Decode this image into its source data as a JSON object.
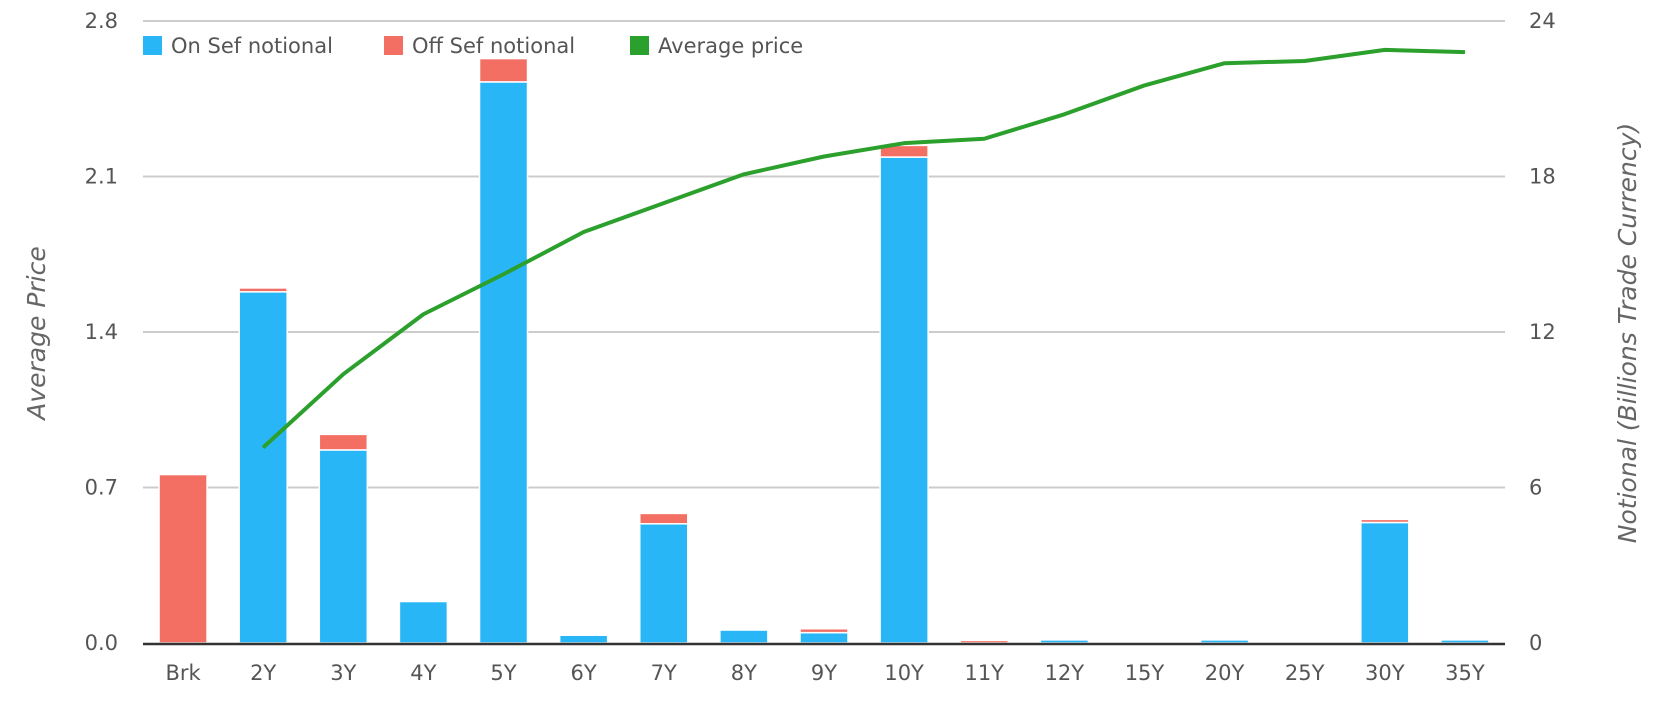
{
  "chart_data": {
    "type": "bar",
    "stacked": true,
    "categories": [
      "Brk",
      "2Y",
      "3Y",
      "4Y",
      "5Y",
      "6Y",
      "7Y",
      "8Y",
      "9Y",
      "10Y",
      "11Y",
      "12Y",
      "15Y",
      "20Y",
      "25Y",
      "30Y",
      "35Y"
    ],
    "series": [
      {
        "name": "On Sef notional",
        "type": "bar",
        "axis": "right",
        "color": "#29b6f6",
        "values": [
          0,
          13.55,
          7.45,
          1.6,
          21.65,
          0.3,
          4.6,
          0.5,
          0.4,
          18.75,
          0,
          0.12,
          0,
          0.12,
          0,
          4.65,
          0.12
        ]
      },
      {
        "name": "Off Sef notional",
        "type": "bar",
        "axis": "right",
        "color": "#f36f63",
        "values": [
          6.5,
          0.15,
          0.6,
          0,
          0.9,
          0,
          0.4,
          0,
          0.15,
          0.45,
          0.1,
          0,
          0,
          0,
          0,
          0.12,
          0
        ]
      },
      {
        "name": "Average price",
        "type": "line",
        "axis": "left",
        "color": "#2ca02c",
        "values": [
          null,
          0.88,
          1.21,
          1.48,
          1.66,
          1.85,
          1.98,
          2.11,
          2.19,
          2.25,
          2.27,
          2.38,
          2.51,
          2.61,
          2.62,
          2.67,
          2.66
        ]
      }
    ],
    "y_left": {
      "label": "Average Price",
      "ticks": [
        "0.0",
        "0.7",
        "1.4",
        "2.1",
        "2.8"
      ],
      "ylim": [
        0,
        2.8
      ]
    },
    "y_right": {
      "label": "Notional (Billions Trade Currency)",
      "ticks": [
        "0",
        "6",
        "12",
        "18",
        "24"
      ],
      "ylim": [
        0,
        24
      ]
    },
    "grid": true,
    "legend": "top-left"
  }
}
